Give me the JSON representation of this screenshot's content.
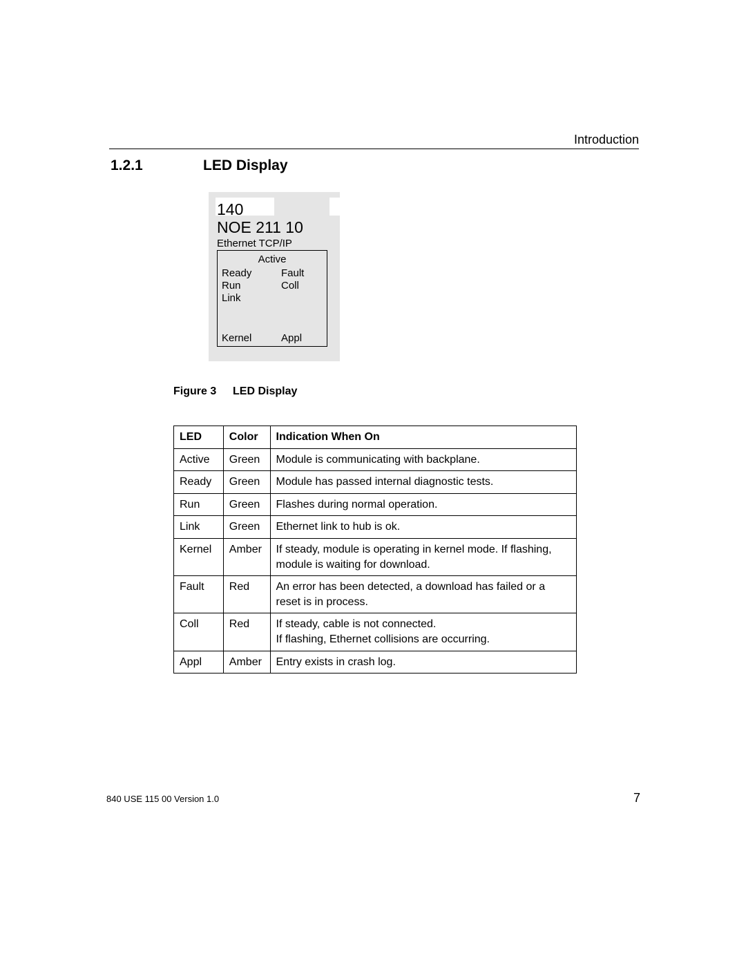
{
  "header": {
    "running_title": "Introduction"
  },
  "section": {
    "number": "1.2.1",
    "title": "LED Display"
  },
  "module": {
    "line1": "140",
    "line2": "NOE 211 10",
    "subtitle": "Ethernet TCP/IP",
    "led_top": "Active",
    "leds": {
      "ready": "Ready",
      "fault": "Fault",
      "run": "Run",
      "coll": "Coll",
      "link": "Link",
      "kernel": "Kernel",
      "appl": "Appl"
    }
  },
  "figure": {
    "label": "Figure 3",
    "title": "LED Display"
  },
  "table": {
    "headers": {
      "led": "LED",
      "color": "Color",
      "indication": "Indication  When On"
    },
    "rows": [
      {
        "led": "Active",
        "color": "Green",
        "indication": "Module is communicating with backplane."
      },
      {
        "led": "Ready",
        "color": "Green",
        "indication": "Module has passed internal diagnostic tests."
      },
      {
        "led": "Run",
        "color": "Green",
        "indication": "Flashes during normal operation."
      },
      {
        "led": "Link",
        "color": "Green",
        "indication": "Ethernet link to hub is ok."
      },
      {
        "led": "Kernel",
        "color": "Amber",
        "indication": "If steady, module is operating in kernel mode. If flashing, module is waiting for download."
      },
      {
        "led": "Fault",
        "color": "Red",
        "indication": "An error has been detected, a download has failed or a reset is in process."
      },
      {
        "led": "Coll",
        "color": "Red",
        "indication": "If steady, cable is not connected.\nIf flashing, Ethernet collisions are occurring."
      },
      {
        "led": "Appl",
        "color": "Amber",
        "indication": "Entry exists in crash log."
      }
    ]
  },
  "footer": {
    "doc_id": "840 USE 115 00  Version 1.0",
    "page_number": "7"
  }
}
